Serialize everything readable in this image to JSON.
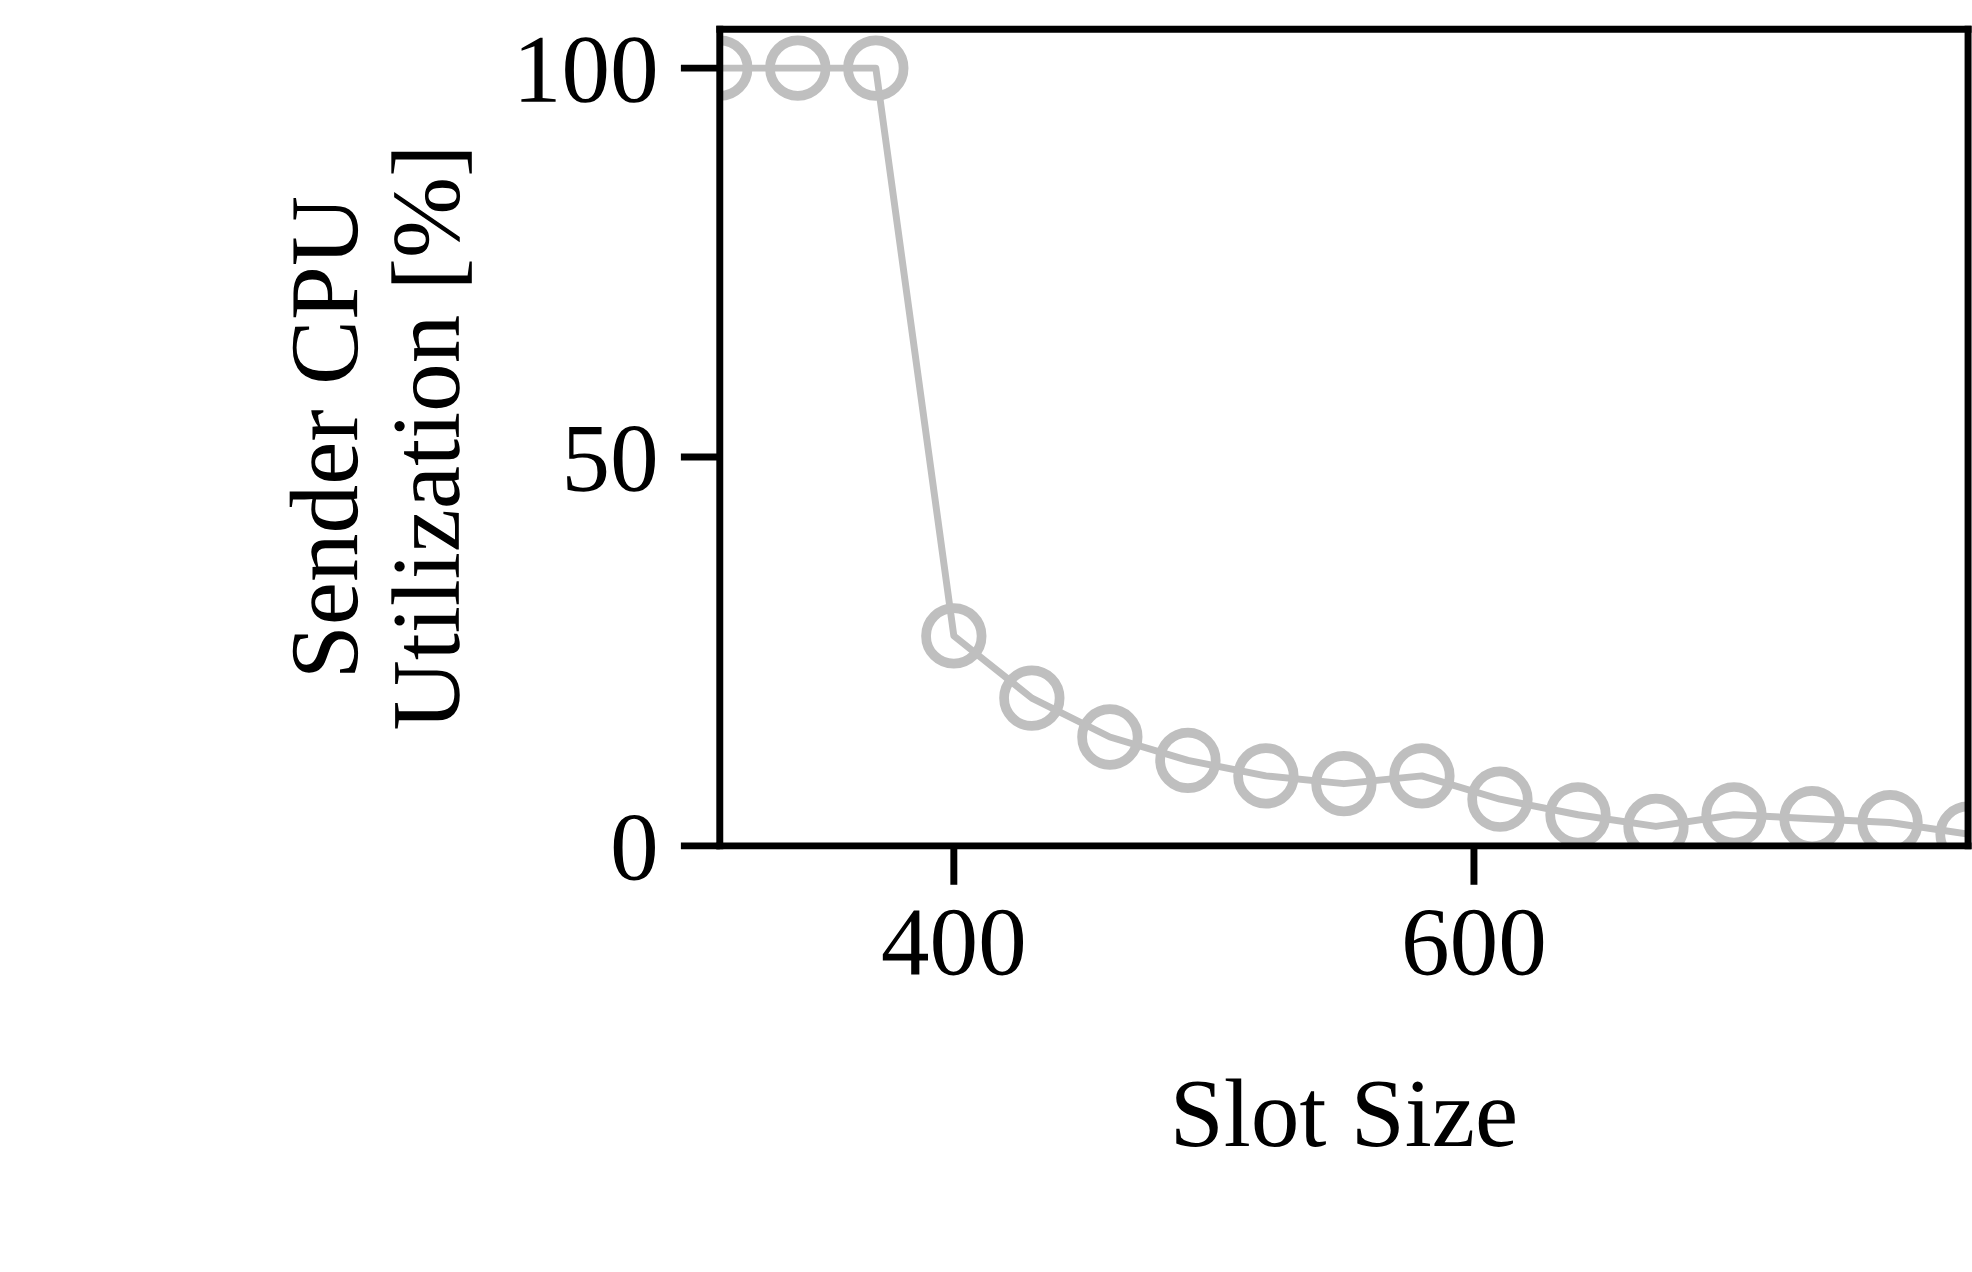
{
  "chart_data": {
    "type": "line",
    "xlabel": "Slot Size",
    "ylabel": "Sender CPU\nUtilization [%]",
    "x": [
      310,
      340,
      370,
      400,
      430,
      460,
      490,
      520,
      550,
      580,
      610,
      640,
      670,
      700,
      730,
      760,
      790
    ],
    "series": [
      {
        "color": "#bfbfbf",
        "values": [
          100,
          100,
          100,
          27,
          19,
          14,
          11,
          9,
          8,
          9,
          6,
          4,
          2.5,
          4,
          3.5,
          3,
          1.5
        ]
      }
    ],
    "xlim": [
      310,
      790
    ],
    "ylim": [
      0,
      105
    ],
    "xticks": [
      400,
      600
    ],
    "yticks": [
      0,
      50,
      100
    ],
    "marker": "circle",
    "line_style": "solid",
    "grid": false,
    "legend": false
  }
}
